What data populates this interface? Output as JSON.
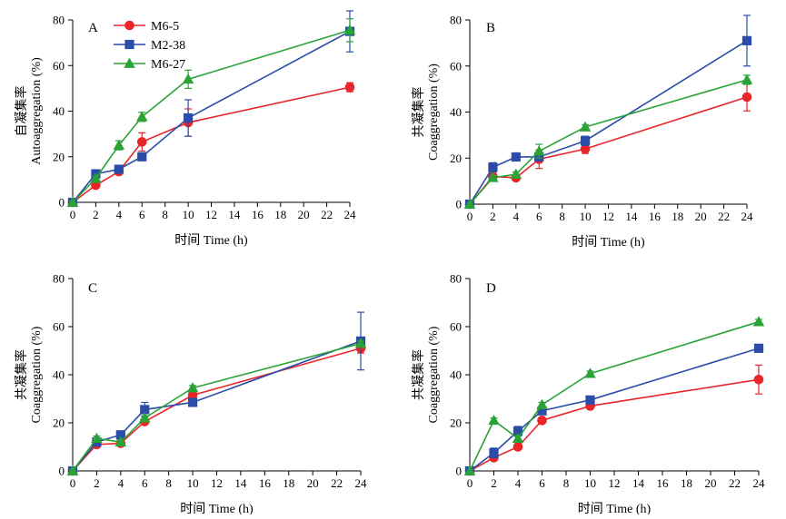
{
  "chart_data": [
    {
      "type": "line",
      "panel": "A",
      "xlabel": "时间 Time (h)",
      "ylabel_cn": "自凝集率",
      "ylabel_en": "Autoaggregation (%)",
      "xlim": [
        0,
        24
      ],
      "ylim": [
        0,
        80
      ],
      "xticks": [
        0,
        2,
        4,
        6,
        8,
        10,
        12,
        14,
        16,
        18,
        20,
        22,
        24
      ],
      "yticks": [
        0,
        20,
        40,
        60,
        80
      ],
      "x": [
        0,
        2,
        4,
        6,
        10,
        24
      ],
      "grid": false,
      "legend": "top-left",
      "series": [
        {
          "name": "M6-5",
          "color": "#e8262a",
          "marker": "circle",
          "values": [
            0,
            7.5,
            13.5,
            26.5,
            35,
            50.5
          ],
          "errors": [
            0,
            1,
            1,
            4,
            6,
            2
          ]
        },
        {
          "name": "M2-38",
          "color": "#2b4ca8",
          "marker": "square",
          "values": [
            0,
            12.5,
            14.5,
            20,
            37,
            75
          ],
          "errors": [
            0,
            1,
            1,
            1,
            8,
            9
          ]
        },
        {
          "name": "M6-27",
          "color": "#2aa336",
          "marker": "triangle",
          "values": [
            0,
            10.5,
            25,
            37.5,
            54,
            75.5
          ],
          "errors": [
            0,
            1,
            2,
            2,
            4,
            5
          ]
        }
      ]
    },
    {
      "type": "line",
      "panel": "B",
      "xlabel": "时间 Time (h)",
      "ylabel_cn": "共凝集率",
      "ylabel_en": "Coaggregation (%)",
      "xlim": [
        0,
        24
      ],
      "ylim": [
        0,
        80
      ],
      "xticks": [
        0,
        2,
        4,
        6,
        8,
        10,
        12,
        14,
        16,
        18,
        20,
        22,
        24
      ],
      "yticks": [
        0,
        20,
        40,
        60,
        80
      ],
      "x": [
        0,
        2,
        4,
        6,
        10,
        24
      ],
      "grid": false,
      "series": [
        {
          "name": "M6-5",
          "color": "#e8262a",
          "marker": "circle",
          "values": [
            0,
            12,
            11.5,
            19.5,
            24,
            46.5
          ],
          "errors": [
            0,
            1,
            1,
            4,
            2,
            6
          ]
        },
        {
          "name": "M2-38",
          "color": "#2b4ca8",
          "marker": "square",
          "values": [
            0,
            16,
            20.5,
            20.5,
            27.5,
            71
          ],
          "errors": [
            0,
            2,
            1,
            1,
            2,
            11
          ]
        },
        {
          "name": "M6-27",
          "color": "#2aa336",
          "marker": "triangle",
          "values": [
            0,
            11.5,
            13,
            23,
            33.5,
            54
          ],
          "errors": [
            0,
            1,
            1,
            3,
            1,
            2
          ]
        }
      ]
    },
    {
      "type": "line",
      "panel": "C",
      "xlabel": "时间 Time (h)",
      "ylabel_cn": "共凝集率",
      "ylabel_en": "Coaggregation (%)",
      "xlim": [
        0,
        24
      ],
      "ylim": [
        0,
        80
      ],
      "xticks": [
        0,
        2,
        4,
        6,
        8,
        10,
        12,
        14,
        16,
        18,
        20,
        22,
        24
      ],
      "yticks": [
        0,
        20,
        40,
        60,
        80
      ],
      "x": [
        0,
        2,
        4,
        6,
        10,
        24
      ],
      "grid": false,
      "series": [
        {
          "name": "M6-5",
          "color": "#e8262a",
          "marker": "circle",
          "values": [
            0,
            11,
            11.5,
            20.5,
            31.5,
            51
          ],
          "errors": [
            0,
            1,
            1,
            1,
            1,
            2
          ]
        },
        {
          "name": "M2-38",
          "color": "#2b4ca8",
          "marker": "square",
          "values": [
            0,
            12,
            15,
            25.5,
            28.5,
            54
          ],
          "errors": [
            0,
            1,
            1,
            3,
            1,
            12
          ]
        },
        {
          "name": "M6-27",
          "color": "#2aa336",
          "marker": "triangle",
          "values": [
            0,
            13.5,
            12,
            22,
            34.5,
            53
          ],
          "errors": [
            0,
            1,
            1,
            1,
            1,
            1
          ]
        }
      ]
    },
    {
      "type": "line",
      "panel": "D",
      "xlabel": "时间 Time (h)",
      "ylabel_cn": "共凝集率",
      "ylabel_en": "Coaggregation (%)",
      "xlim": [
        0,
        24
      ],
      "ylim": [
        0,
        80
      ],
      "xticks": [
        0,
        2,
        4,
        6,
        8,
        10,
        12,
        14,
        16,
        18,
        20,
        22,
        24
      ],
      "yticks": [
        0,
        20,
        40,
        60,
        80
      ],
      "x": [
        0,
        2,
        4,
        6,
        10,
        24
      ],
      "grid": false,
      "series": [
        {
          "name": "M6-5",
          "color": "#e8262a",
          "marker": "circle",
          "values": [
            0,
            5.5,
            10,
            21,
            27,
            38
          ],
          "errors": [
            0,
            1,
            1,
            1,
            1,
            6
          ]
        },
        {
          "name": "M2-38",
          "color": "#2b4ca8",
          "marker": "square",
          "values": [
            0,
            7.5,
            16.5,
            25,
            29.5,
            51
          ],
          "errors": [
            0,
            2,
            2,
            1,
            1,
            1
          ]
        },
        {
          "name": "M6-27",
          "color": "#2aa336",
          "marker": "triangle",
          "values": [
            0,
            21,
            13.5,
            27.5,
            40.5,
            62
          ],
          "errors": [
            0,
            1,
            1,
            1,
            1,
            1
          ]
        }
      ]
    }
  ]
}
